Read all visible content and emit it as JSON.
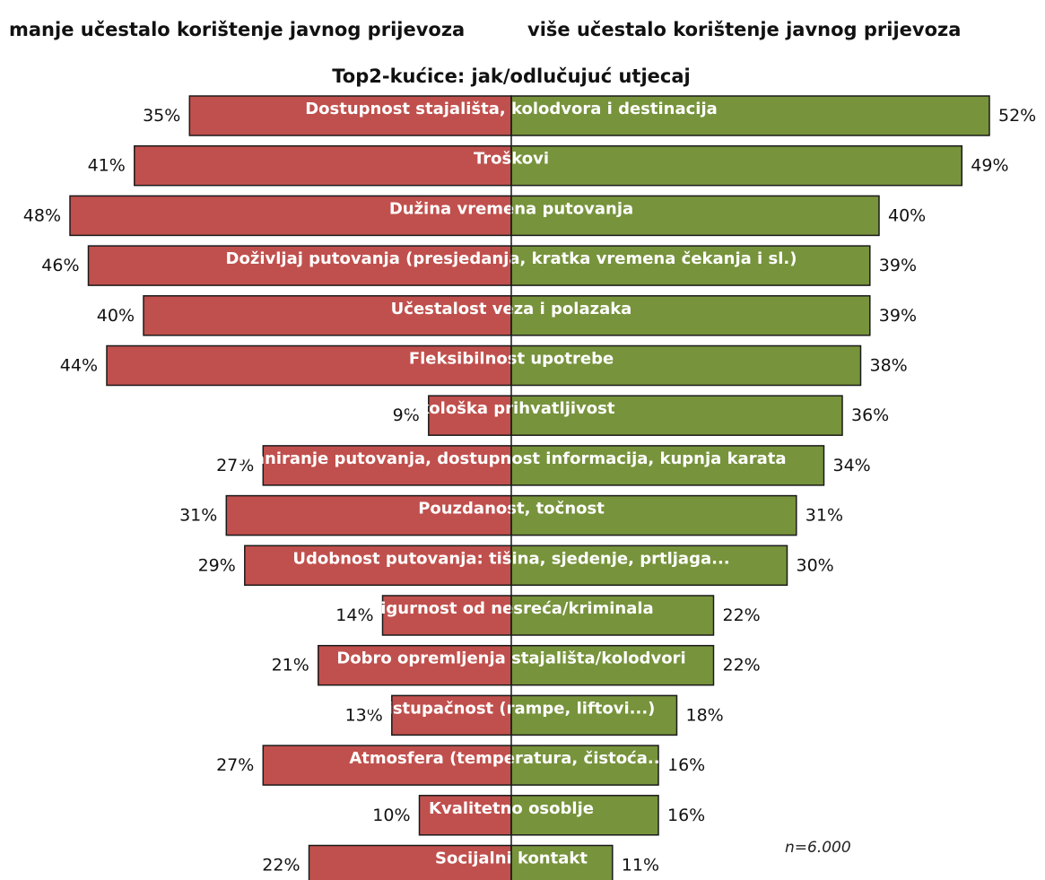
{
  "headers": {
    "left": "manje učestalo korištenje javnog prijevoza",
    "right": "više učestalo korištenje javnog prijevoza"
  },
  "sample_note": "n=6.000",
  "colors": {
    "left_bar": "#c0504d",
    "right_bar": "#77933c",
    "bar_stroke": "#1a1a1a"
  },
  "chart_data": {
    "type": "bar",
    "orientation": "horizontal-diverging",
    "title": "Top2-kućice: jak/odlučujuć utjecaj",
    "value_unit": "%",
    "categories": [
      "Dostupnost stajališta, kolodvora i destinacija",
      "Troškovi",
      "Dužina vremena putovanja",
      "Doživljaj putovanja (presjedanja, kratka vremena čekanja i sl.)",
      "Učestalost veza i polazaka",
      "Fleksibilnost upotrebe",
      "Ekološka prihvatljivost",
      "Planiranje putovanja, dostupnost informacija, kupnja karata",
      "Pouzdanost, točnost",
      "Udobnost putovanja: tišina, sjedenje, prtljaga...",
      "Sigurnost od nesreća/kriminala",
      "Dobro opremljenja stajališta/kolodvori",
      "Pristupačnost (rampe, liftovi...)",
      "Atmosfera (temperatura, čistoća...)",
      "Kvalitetno osoblje",
      "Socijalni kontakt"
    ],
    "series": [
      {
        "name": "manje učestalo korištenje javnog prijevoza",
        "side": "left",
        "values": [
          35,
          41,
          48,
          46,
          40,
          44,
          9,
          27,
          31,
          29,
          14,
          21,
          13,
          27,
          10,
          22
        ],
        "labels": [
          "35%",
          "41%",
          "48%",
          "46%",
          "40%",
          "44%",
          "9%",
          "27%",
          "31%",
          "29%",
          "14%",
          "21%",
          "13%",
          "27%",
          "10%",
          "22%"
        ]
      },
      {
        "name": "više učestalo korištenje javnog prijevoza",
        "side": "right",
        "values": [
          52,
          49,
          40,
          39,
          39,
          38,
          36,
          34,
          31,
          30,
          22,
          22,
          18,
          16,
          16,
          11
        ],
        "labels": [
          "52%",
          "49%",
          "40%",
          "39%",
          "39%",
          "38%",
          "36%",
          "34%",
          "31%",
          "30%",
          "22%",
          "22%",
          "18%",
          "16%",
          "16%",
          "11%"
        ]
      }
    ],
    "xlim": [
      -48,
      52
    ],
    "grid": false,
    "legend": "none"
  }
}
